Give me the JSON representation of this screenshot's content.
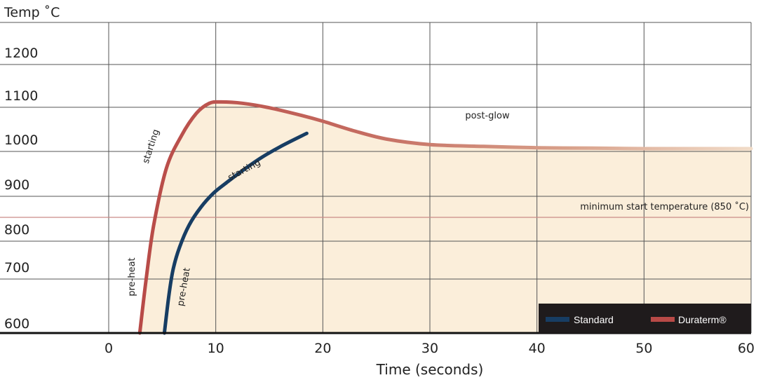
{
  "chart_data": {
    "type": "line",
    "ylabel": "Temp ˚C",
    "xlabel": "Time (seconds)",
    "x_ticks": [
      "0",
      "10",
      "20",
      "30",
      "40",
      "50",
      "60"
    ],
    "y_ticks": [
      "600",
      "700",
      "800",
      "900",
      "1000",
      "1100",
      "1200"
    ],
    "xlim": [
      0,
      60
    ],
    "ylim": [
      600,
      1200
    ],
    "grid": true,
    "colors": {
      "standard": "#173d63",
      "duraterm": "#b84a47",
      "fill": "#fbeeda",
      "threshold": "#c98a86"
    },
    "series": [
      {
        "name": "Standard",
        "x": [
          5.2,
          5.6,
          6.0,
          6.6,
          7.5,
          8.6,
          9.8,
          11.0,
          12.5,
          14.2,
          16.0,
          18.5
        ],
        "y": [
          600,
          680,
          740,
          790,
          840,
          880,
          912,
          935,
          962,
          990,
          1015,
          1045
        ]
      },
      {
        "name": "Duraterm®",
        "x": [
          2.9,
          3.5,
          4.2,
          5.4,
          6.8,
          8.2,
          9.4,
          10.5,
          12.5,
          15.0,
          18.0,
          20.0,
          23.0,
          26.0,
          30.0,
          35.0,
          40.0,
          45.0,
          50.0,
          55.0,
          60.0
        ],
        "y": [
          600,
          720,
          840,
          968,
          1040,
          1090,
          1112,
          1115,
          1112,
          1102,
          1085,
          1072,
          1050,
          1032,
          1020,
          1016,
          1013,
          1012,
          1011,
          1011,
          1011
        ]
      }
    ],
    "threshold": {
      "value": 850,
      "label": "minimum start temperature (850 ˚C)"
    },
    "annotations": {
      "post_glow": "post-glow",
      "starting_duraterm": "starting",
      "starting_standard": "starting",
      "preheat_duraterm": "pre-heat",
      "preheat_standard": "pre-heat"
    },
    "legend": {
      "position": "bottom-right",
      "entries": [
        "Standard",
        "Duraterm®"
      ]
    }
  }
}
